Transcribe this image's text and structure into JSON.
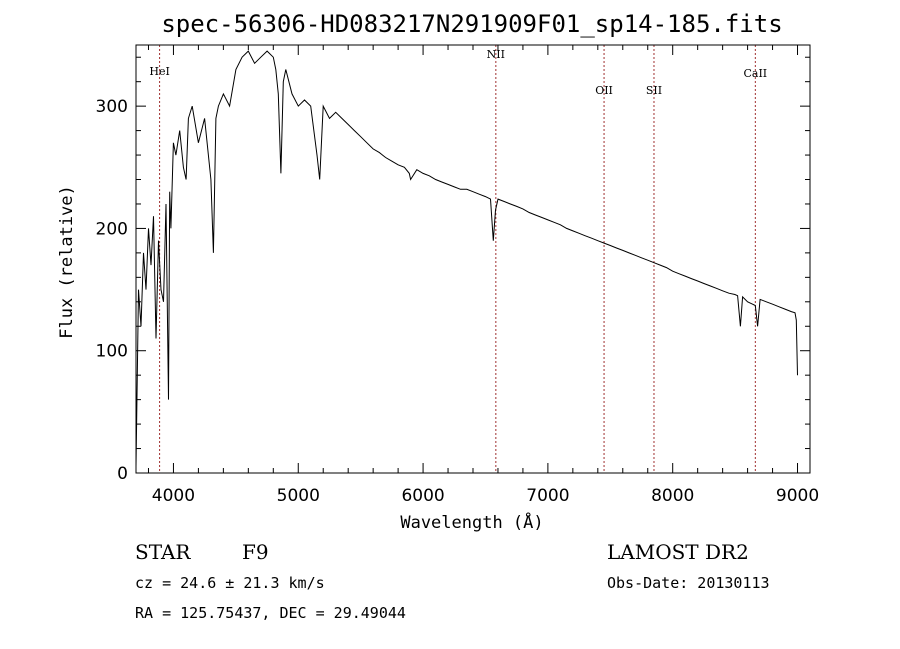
{
  "chart_data": {
    "type": "line",
    "title": "spec-56306-HD083217N291909F01_sp14-185.fits",
    "xlabel": "Wavelength (Å)",
    "ylabel": "Flux (relative)",
    "xlim": [
      3700,
      9100
    ],
    "ylim": [
      0,
      350
    ],
    "xticks": [
      4000,
      5000,
      6000,
      7000,
      8000,
      9000
    ],
    "yticks": [
      0,
      100,
      200,
      300
    ],
    "series": [
      {
        "x": [
          3700,
          3720,
          3740,
          3760,
          3780,
          3800,
          3820,
          3840,
          3860,
          3880,
          3900,
          3920,
          3940,
          3960,
          3970,
          3980,
          4000,
          4020,
          4050,
          4080,
          4101,
          4120,
          4150,
          4200,
          4250,
          4300,
          4320,
          4340,
          4360,
          4400,
          4450,
          4500,
          4550,
          4600,
          4650,
          4700,
          4750,
          4800,
          4820,
          4840,
          4861,
          4880,
          4900,
          4950,
          5000,
          5050,
          5100,
          5150,
          5172,
          5200,
          5250,
          5300,
          5350,
          5400,
          5450,
          5500,
          5550,
          5600,
          5650,
          5700,
          5750,
          5800,
          5850,
          5890,
          5900,
          5950,
          6000,
          6050,
          6100,
          6150,
          6200,
          6250,
          6300,
          6350,
          6400,
          6450,
          6500,
          6540,
          6563,
          6580,
          6600,
          6650,
          6700,
          6750,
          6800,
          6850,
          6900,
          6950,
          7000,
          7050,
          7100,
          7150,
          7200,
          7250,
          7300,
          7350,
          7400,
          7450,
          7500,
          7550,
          7600,
          7650,
          7700,
          7750,
          7800,
          7850,
          7900,
          7950,
          8000,
          8050,
          8100,
          8150,
          8200,
          8250,
          8300,
          8350,
          8400,
          8450,
          8498,
          8520,
          8542,
          8560,
          8600,
          8640,
          8662,
          8680,
          8700,
          8750,
          8800,
          8850,
          8900,
          8950,
          8980,
          8990,
          9000
        ],
        "y": [
          5,
          150,
          120,
          180,
          150,
          200,
          170,
          210,
          110,
          190,
          150,
          140,
          220,
          60,
          230,
          200,
          270,
          260,
          280,
          250,
          240,
          290,
          300,
          270,
          290,
          240,
          180,
          290,
          300,
          310,
          300,
          330,
          340,
          345,
          335,
          340,
          345,
          340,
          330,
          310,
          245,
          320,
          330,
          310,
          300,
          305,
          300,
          260,
          240,
          300,
          290,
          295,
          290,
          285,
          280,
          275,
          270,
          265,
          262,
          258,
          255,
          252,
          250,
          245,
          240,
          248,
          245,
          243,
          240,
          238,
          236,
          234,
          232,
          232,
          230,
          228,
          226,
          224,
          190,
          215,
          224,
          222,
          220,
          218,
          216,
          213,
          211,
          209,
          207,
          205,
          203,
          200,
          198,
          196,
          194,
          192,
          190,
          188,
          186,
          184,
          182,
          180,
          178,
          176,
          174,
          172,
          170,
          168,
          165,
          163,
          161,
          159,
          157,
          155,
          153,
          151,
          149,
          147,
          146,
          145,
          120,
          144,
          140,
          138,
          137,
          120,
          142,
          140,
          138,
          136,
          134,
          132,
          131,
          125,
          80
        ]
      }
    ],
    "line_markers": [
      {
        "label": "HeI",
        "x": 3889
      },
      {
        "label": "NII",
        "x": 6583
      },
      {
        "label": "OII",
        "x": 7450
      },
      {
        "label": "SII",
        "x": 7850
      },
      {
        "label": "CaII",
        "x": 8662
      }
    ]
  },
  "info": {
    "object_type": "STAR",
    "subclass": "F9",
    "survey": "LAMOST DR2",
    "redshift_text": "cz = 24.6 ± 21.3 km/s",
    "obs_date": "Obs-Date: 20130113",
    "coords": "RA = 125.75437, DEC =  29.49044"
  },
  "colors": {
    "spectrum": "#000000",
    "marker_line": "#a03030",
    "axis": "#000000"
  }
}
